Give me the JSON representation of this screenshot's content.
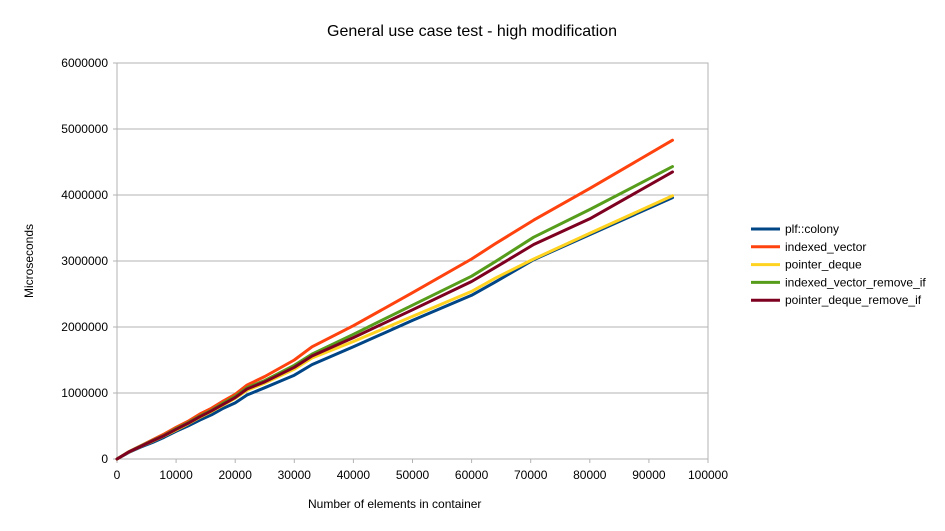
{
  "chart_data": {
    "type": "line",
    "title": "General use case test - high modification",
    "xlabel": "Number of elements in container",
    "ylabel": "Microseconds",
    "xlim": [
      0,
      100000
    ],
    "ylim": [
      0,
      6000000
    ],
    "xticks": [
      0,
      10000,
      20000,
      30000,
      40000,
      50000,
      60000,
      70000,
      80000,
      90000,
      100000
    ],
    "yticks": [
      0,
      1000000,
      2000000,
      3000000,
      4000000,
      5000000,
      6000000
    ],
    "grid": true,
    "legend_position": "right",
    "series": [
      {
        "name": "plf::colony",
        "color": "#004586",
        "x": [
          0,
          2000,
          4000,
          6000,
          8000,
          10000,
          12000,
          14000,
          16000,
          18000,
          20000,
          22000,
          25000,
          30000,
          33000,
          40000,
          50000,
          60000,
          64000,
          70500,
          80000,
          94000
        ],
        "y": [
          0,
          100000,
          180000,
          250000,
          330000,
          420000,
          500000,
          590000,
          670000,
          770000,
          850000,
          970000,
          1080000,
          1270000,
          1430000,
          1700000,
          2100000,
          2480000,
          2680000,
          3020000,
          3400000,
          3960000
        ]
      },
      {
        "name": "indexed_vector",
        "color": "#ff420e",
        "x": [
          0,
          2000,
          4000,
          6000,
          8000,
          10000,
          12000,
          14000,
          16000,
          18000,
          20000,
          22000,
          25000,
          30000,
          33000,
          40000,
          50000,
          60000,
          64000,
          70500,
          80000,
          94000
        ],
        "y": [
          0,
          110000,
          200000,
          290000,
          380000,
          480000,
          570000,
          680000,
          770000,
          880000,
          980000,
          1120000,
          1250000,
          1500000,
          1700000,
          2020000,
          2520000,
          3030000,
          3260000,
          3620000,
          4100000,
          4830000
        ]
      },
      {
        "name": "pointer_deque",
        "color": "#ffd320",
        "x": [
          0,
          2000,
          4000,
          6000,
          8000,
          10000,
          12000,
          14000,
          16000,
          18000,
          20000,
          22000,
          25000,
          30000,
          33000,
          40000,
          50000,
          60000,
          64000,
          70500,
          80000,
          94000
        ],
        "y": [
          0,
          105000,
          190000,
          270000,
          350000,
          440000,
          530000,
          630000,
          720000,
          820000,
          920000,
          1040000,
          1150000,
          1360000,
          1530000,
          1780000,
          2160000,
          2540000,
          2740000,
          3030000,
          3420000,
          3990000
        ]
      },
      {
        "name": "indexed_vector_remove_if",
        "color": "#579d1c",
        "x": [
          0,
          2000,
          4000,
          6000,
          8000,
          10000,
          12000,
          14000,
          16000,
          18000,
          20000,
          22000,
          25000,
          30000,
          33000,
          40000,
          50000,
          60000,
          64000,
          70500,
          80000,
          94000
        ],
        "y": [
          0,
          108000,
          195000,
          280000,
          360000,
          460000,
          550000,
          650000,
          740000,
          850000,
          950000,
          1080000,
          1190000,
          1420000,
          1590000,
          1890000,
          2330000,
          2770000,
          2990000,
          3360000,
          3780000,
          4430000
        ]
      },
      {
        "name": "pointer_deque_remove_if",
        "color": "#7e0021",
        "x": [
          0,
          2000,
          4000,
          6000,
          8000,
          10000,
          12000,
          14000,
          16000,
          18000,
          20000,
          22000,
          25000,
          30000,
          33000,
          40000,
          50000,
          60000,
          64000,
          70500,
          80000,
          94000
        ],
        "y": [
          0,
          106000,
          190000,
          275000,
          355000,
          450000,
          540000,
          640000,
          730000,
          830000,
          930000,
          1060000,
          1170000,
          1390000,
          1560000,
          1840000,
          2260000,
          2690000,
          2900000,
          3250000,
          3640000,
          4350000
        ]
      }
    ]
  }
}
